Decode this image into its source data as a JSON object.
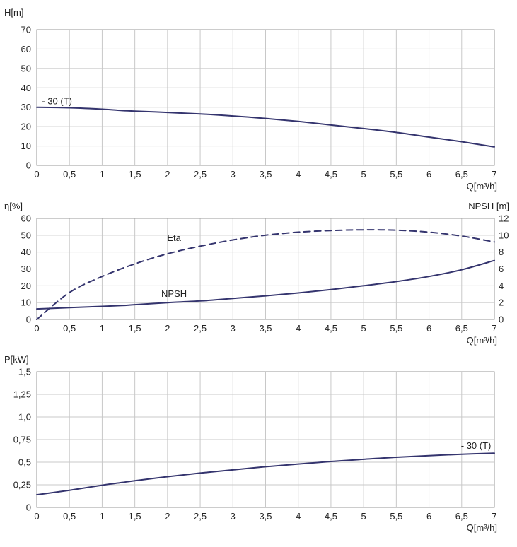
{
  "x_ticks": [
    "0",
    "0,5",
    "1",
    "1,5",
    "2",
    "2,5",
    "3",
    "3,5",
    "4",
    "4,5",
    "5",
    "5,5",
    "6",
    "6,5",
    "7"
  ],
  "colors": {
    "curve": "#34346e",
    "grid": "#c8c8c8",
    "frame": "#9a9a9a"
  },
  "chart_data": [
    {
      "type": "line",
      "xlabel": "Q[m³/h]",
      "ylabel": "H[m]",
      "xlim": [
        0,
        7
      ],
      "ylim": [
        0,
        70
      ],
      "yticks": [
        "0",
        "10",
        "20",
        "30",
        "40",
        "50",
        "60",
        "70"
      ],
      "grid": true,
      "annotations": [
        {
          "text": "- 30 (T)"
        }
      ],
      "series": [
        {
          "x": [
            0,
            0.5,
            1,
            1.3,
            1.5,
            2,
            2.5,
            3,
            3.5,
            4,
            4.5,
            5,
            5.5,
            6,
            6.5,
            7
          ],
          "y": [
            30,
            29.7,
            29,
            28.3,
            28,
            27.3,
            26.5,
            25.5,
            24.2,
            22.7,
            20.8,
            19,
            17,
            14.6,
            12.2,
            9.5
          ]
        }
      ]
    },
    {
      "type": "line",
      "xlabel": "Q[m³/h]",
      "ylabel": "η[%]",
      "y2label": "NPSH [m]",
      "xlim": [
        0,
        7
      ],
      "ylim": [
        0,
        60
      ],
      "y2lim": [
        0,
        12
      ],
      "yticks": [
        "0",
        "10",
        "20",
        "30",
        "40",
        "50",
        "60"
      ],
      "y2ticks": [
        "0",
        "2",
        "4",
        "6",
        "8",
        "10",
        "12"
      ],
      "grid": true,
      "series": [
        {
          "name": "Eta",
          "axis": "left",
          "dashed": true,
          "x": [
            0,
            0.5,
            1,
            1.5,
            2,
            2.5,
            3,
            3.5,
            4,
            4.5,
            5,
            5.5,
            6,
            6.5,
            7
          ],
          "y": [
            0,
            16,
            25.5,
            33,
            39,
            43.5,
            47.2,
            50,
            51.8,
            52.8,
            53.2,
            53,
            51.8,
            49.5,
            46
          ]
        },
        {
          "name": "NPSH",
          "axis": "right",
          "x": [
            0,
            0.5,
            1,
            1.3,
            1.5,
            2,
            2.5,
            3,
            3.5,
            4,
            4.5,
            5,
            5.5,
            6,
            6.5,
            7
          ],
          "y": [
            1.25,
            1.4,
            1.55,
            1.65,
            1.75,
            2,
            2.2,
            2.5,
            2.8,
            3.15,
            3.55,
            4,
            4.5,
            5.1,
            5.9,
            7
          ]
        }
      ]
    },
    {
      "type": "line",
      "xlabel": "Q[m³/h]",
      "ylabel": "P[kW]",
      "xlim": [
        0,
        7
      ],
      "ylim": [
        0,
        1.5
      ],
      "yticks": [
        "0",
        "0,25",
        "0,5",
        "0,75",
        "1,0",
        "1,25",
        "1,5"
      ],
      "grid": true,
      "annotations": [
        {
          "text": "- 30 (T)"
        }
      ],
      "series": [
        {
          "x": [
            0,
            0.5,
            1,
            1.3,
            1.5,
            2,
            2.5,
            3,
            3.5,
            4,
            4.5,
            5,
            5.5,
            6,
            6.5,
            7
          ],
          "y": [
            0.14,
            0.19,
            0.245,
            0.275,
            0.295,
            0.34,
            0.38,
            0.415,
            0.45,
            0.48,
            0.508,
            0.532,
            0.555,
            0.573,
            0.588,
            0.6
          ]
        }
      ]
    }
  ]
}
